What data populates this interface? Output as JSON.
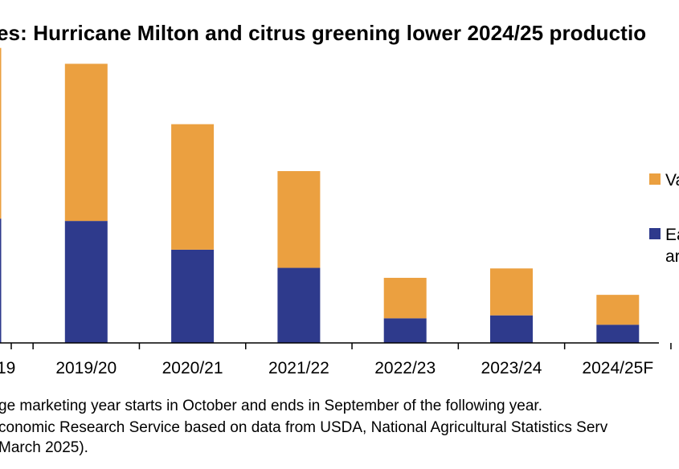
{
  "title": "es: Hurricane Milton and citrus greening lower 2024/25 productio",
  "chart_data": {
    "type": "bar",
    "stacked": true,
    "categories": [
      "19",
      "2019/20",
      "2020/21",
      "2021/22",
      "2022/23",
      "2023/24",
      "2024/25F"
    ],
    "series": [
      {
        "name": "Ea",
        "name_line2": "ar",
        "color": "#2e3a8c",
        "values": [
          21.2,
          20.8,
          15.9,
          12.8,
          4.2,
          4.7,
          3.1
        ]
      },
      {
        "name": "Va",
        "color": "#eba040",
        "values": [
          29.1,
          26.8,
          21.4,
          16.5,
          6.9,
          8.0,
          5.1
        ]
      }
    ],
    "ylim": [
      0,
      53
    ],
    "legend": "right",
    "grid": false
  },
  "notes": [
    "ge marketing year starts in October and ends in September of the following year.",
    "conomic Research Service based on data from USDA, National Agricultural Statistics Serv",
    "March 2025)."
  ]
}
